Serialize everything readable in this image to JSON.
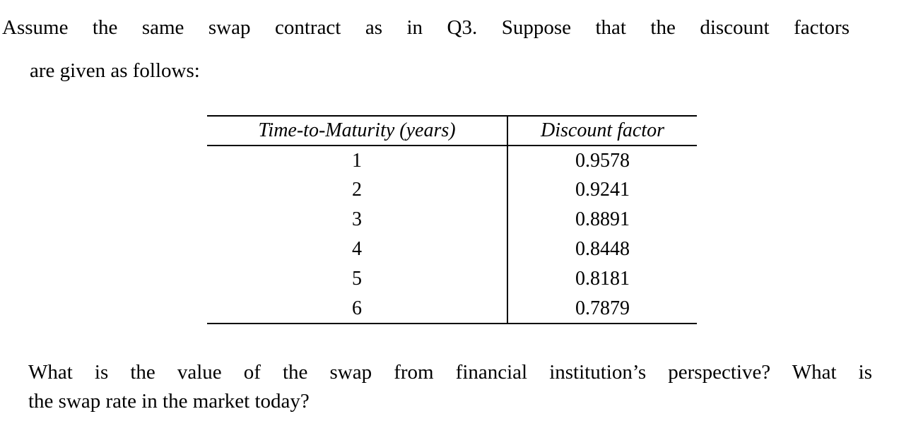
{
  "document": {
    "intro": {
      "line1": "Assume the same swap contract as in Q3. Suppose that the discount factors",
      "line2": "are given as follows:"
    },
    "table": {
      "headers": [
        "Time-to-Maturity (years)",
        "Discount factor"
      ],
      "rows": [
        [
          "1",
          "0.9578"
        ],
        [
          "2",
          "0.9241"
        ],
        [
          "3",
          "0.8891"
        ],
        [
          "4",
          "0.8448"
        ],
        [
          "5",
          "0.8181"
        ],
        [
          "6",
          "0.7879"
        ]
      ]
    },
    "question": {
      "line1": "What is the value of the swap from financial institution’s perspective? What is",
      "line2": "the swap rate in the market today?"
    },
    "colors": {
      "text": "#000000",
      "background": "#ffffff",
      "rule": "#000000"
    }
  }
}
